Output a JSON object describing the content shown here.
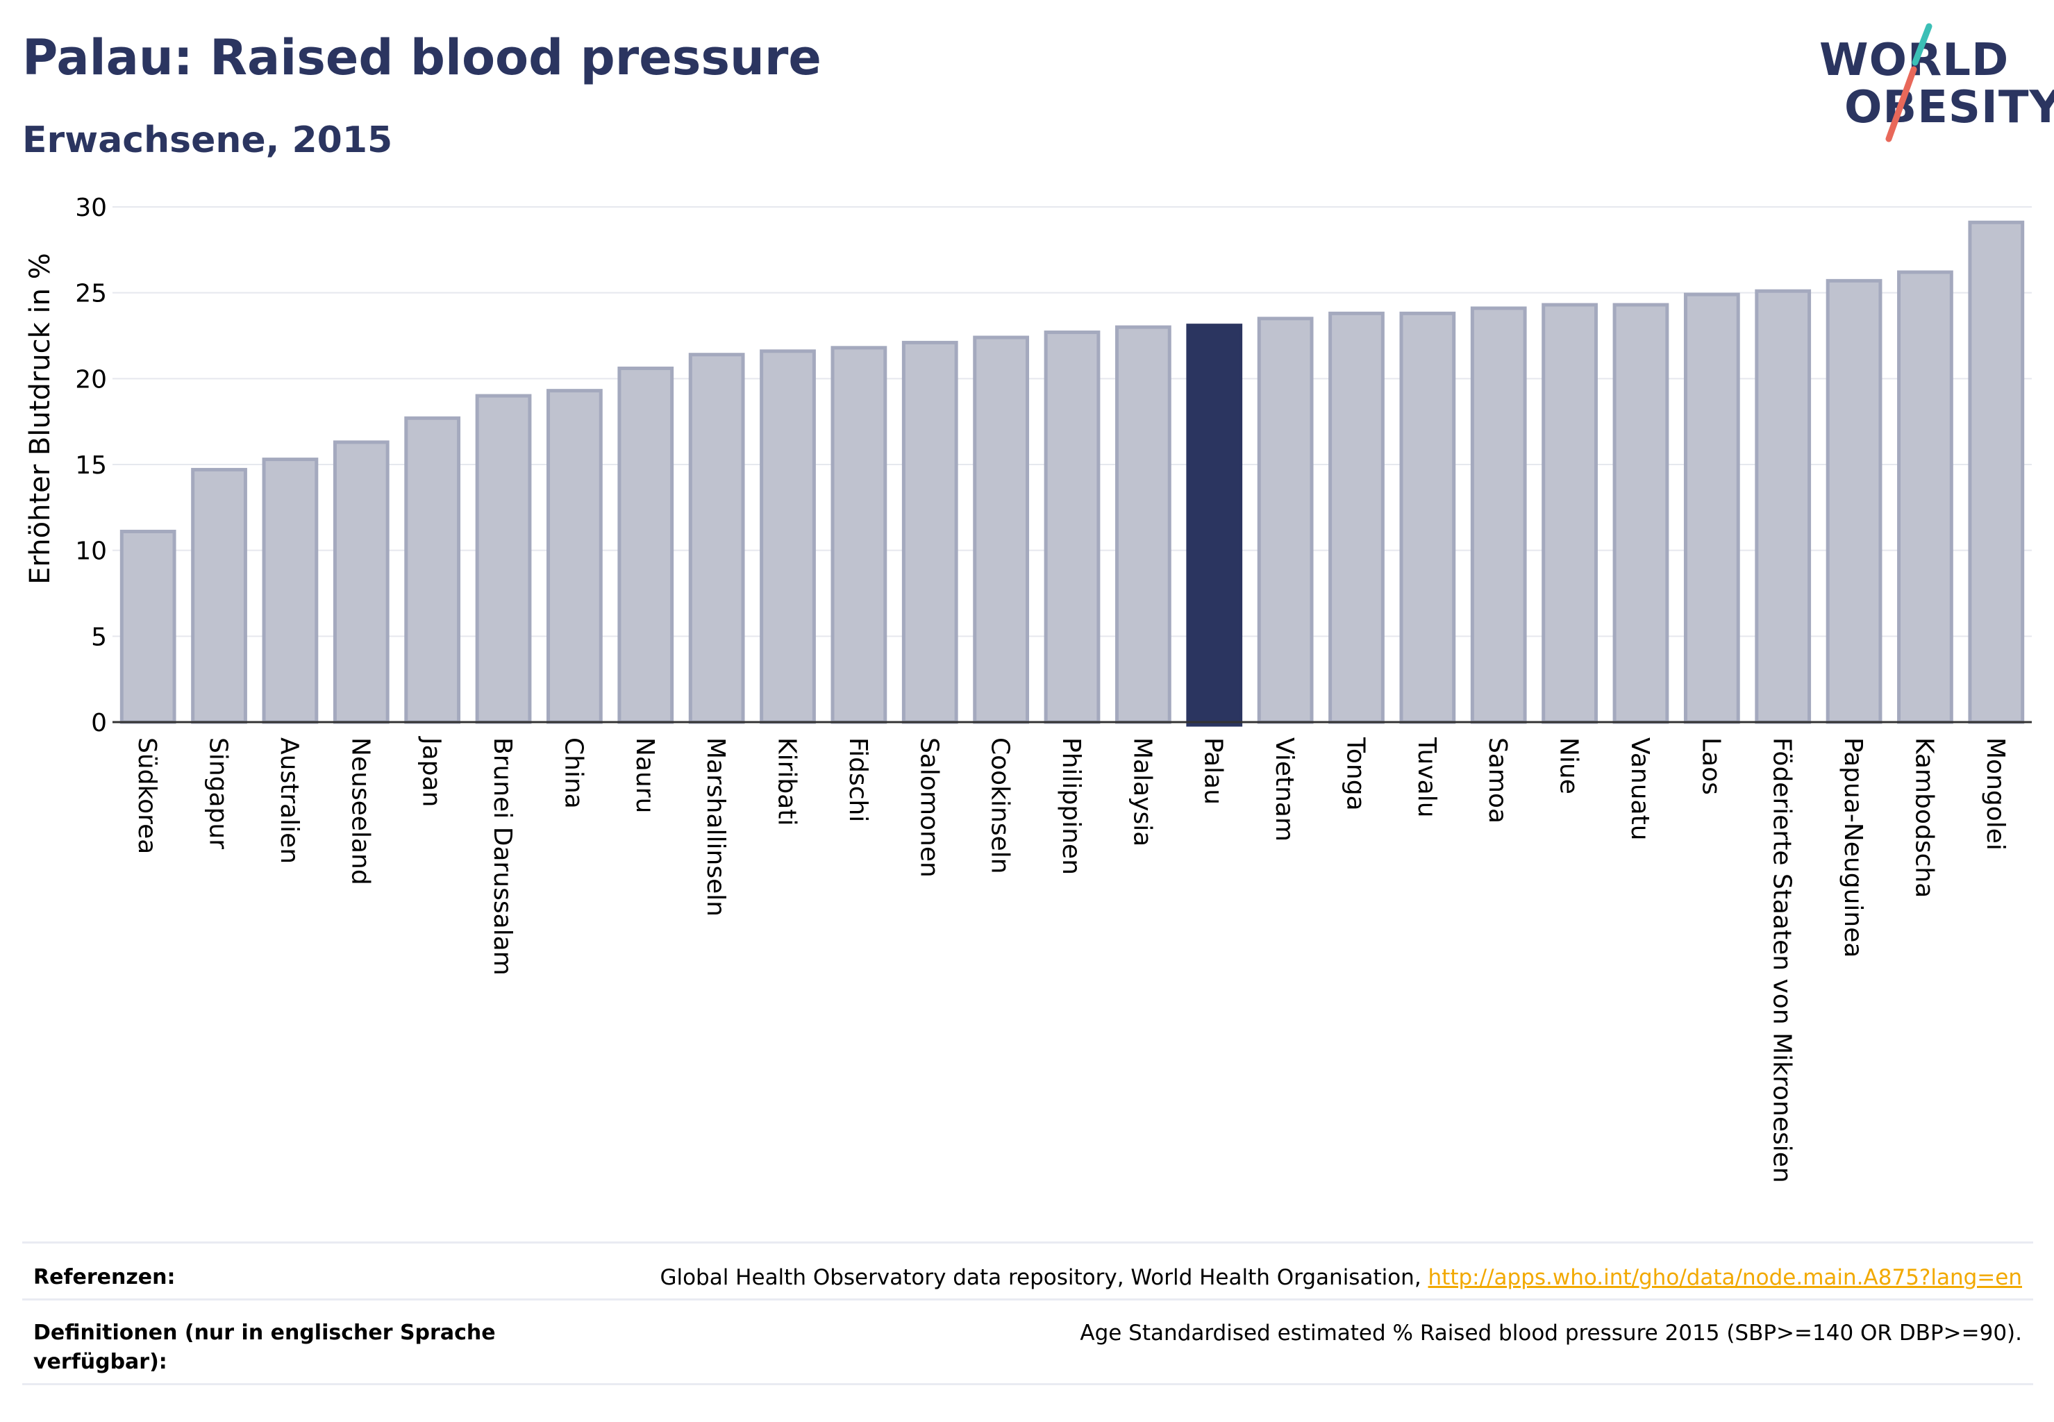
{
  "header": {
    "title": "Palau: Raised blood pressure",
    "subtitle": "Erwachsene, 2015"
  },
  "logo": {
    "line1": "WORLD",
    "line2": "OBESITY",
    "colors": {
      "text": "#2b3560",
      "slash_top": "#3bbfb6",
      "slash_bottom": "#e8685a"
    }
  },
  "colors": {
    "bar_fill": "#bfc2cf",
    "bar_stroke": "#a4a9be",
    "highlight_fill": "#2b3560",
    "grid": "#e6e8ee",
    "axis": "#333333"
  },
  "chart_data": {
    "type": "bar",
    "ylabel": "Erhöhter Blutdruck in %",
    "ylim": [
      0,
      30
    ],
    "yticks": [
      0,
      5,
      10,
      15,
      20,
      25,
      30
    ],
    "grid": true,
    "highlight": "Palau",
    "categories": [
      "Südkorea",
      "Singapur",
      "Australien",
      "Neuseeland",
      "Japan",
      "Brunei Darussalam",
      "China",
      "Nauru",
      "Marshallinseln",
      "Kiribati",
      "Fidschi",
      "Salomonen",
      "Cookinseln",
      "Philippinen",
      "Malaysia",
      "Palau",
      "Vietnam",
      "Tonga",
      "Tuvalu",
      "Samoa",
      "Niue",
      "Vanuatu",
      "Laos",
      "Föderierte Staaten von Mikronesien",
      "Papua-Neuguinea",
      "Kambodscha",
      "Mongolei"
    ],
    "values": [
      11.1,
      14.7,
      15.3,
      16.3,
      17.7,
      19.0,
      19.3,
      20.6,
      21.4,
      21.6,
      21.8,
      22.1,
      22.4,
      22.7,
      23.0,
      23.1,
      23.5,
      23.8,
      23.8,
      24.1,
      24.3,
      24.3,
      24.9,
      25.1,
      25.7,
      26.2,
      29.1
    ]
  },
  "footer": {
    "references_label": "Referenzen:",
    "references_text": "Global Health Observatory data repository, World Health Organisation, ",
    "references_link": "http://apps.who.int/gho/data/node.main.A875?lang=en",
    "definitions_label": "Definitionen (nur in englischer Sprache verfügbar):",
    "definitions_text": "Age Standardised estimated % Raised blood pressure 2015 (SBP>=140 OR DBP>=90)."
  }
}
